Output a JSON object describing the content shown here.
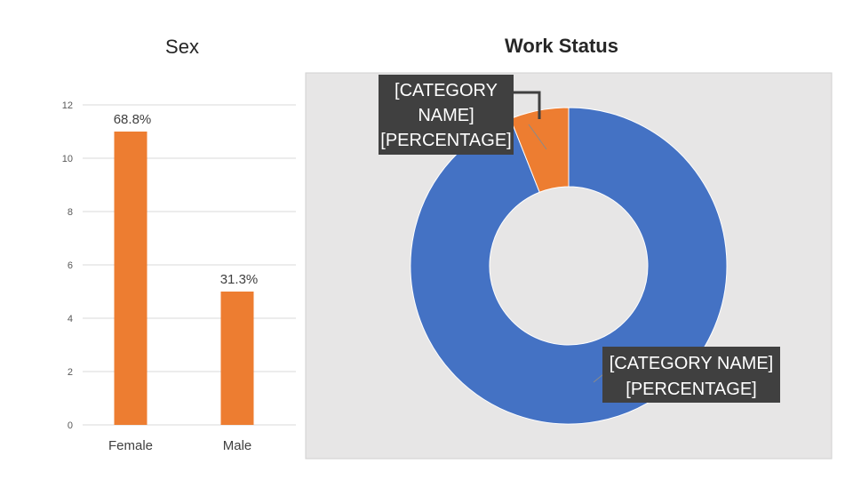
{
  "chart_data": [
    {
      "type": "bar",
      "title": "Sex",
      "categories": [
        "Female",
        "Male"
      ],
      "values": [
        11,
        5
      ],
      "data_labels": [
        "68.8%",
        "31.3%"
      ],
      "ylim": [
        0,
        12
      ],
      "y_ticks": [
        0,
        2,
        4,
        6,
        8,
        10,
        12
      ],
      "grid": true,
      "bar_color": "#ED7D31"
    },
    {
      "type": "pie",
      "variant": "doughnut",
      "title": "Work Status",
      "slices": [
        {
          "value": 94,
          "color": "#4472C4",
          "label": "[CATEGORY NAME] [PERCENTAGE]"
        },
        {
          "value": 6,
          "color": "#ED7D31",
          "label": "[CATEGORY NAME] [PERCENTAGE]"
        }
      ],
      "background": "#E7E6E6",
      "label_background": "#404040"
    }
  ]
}
